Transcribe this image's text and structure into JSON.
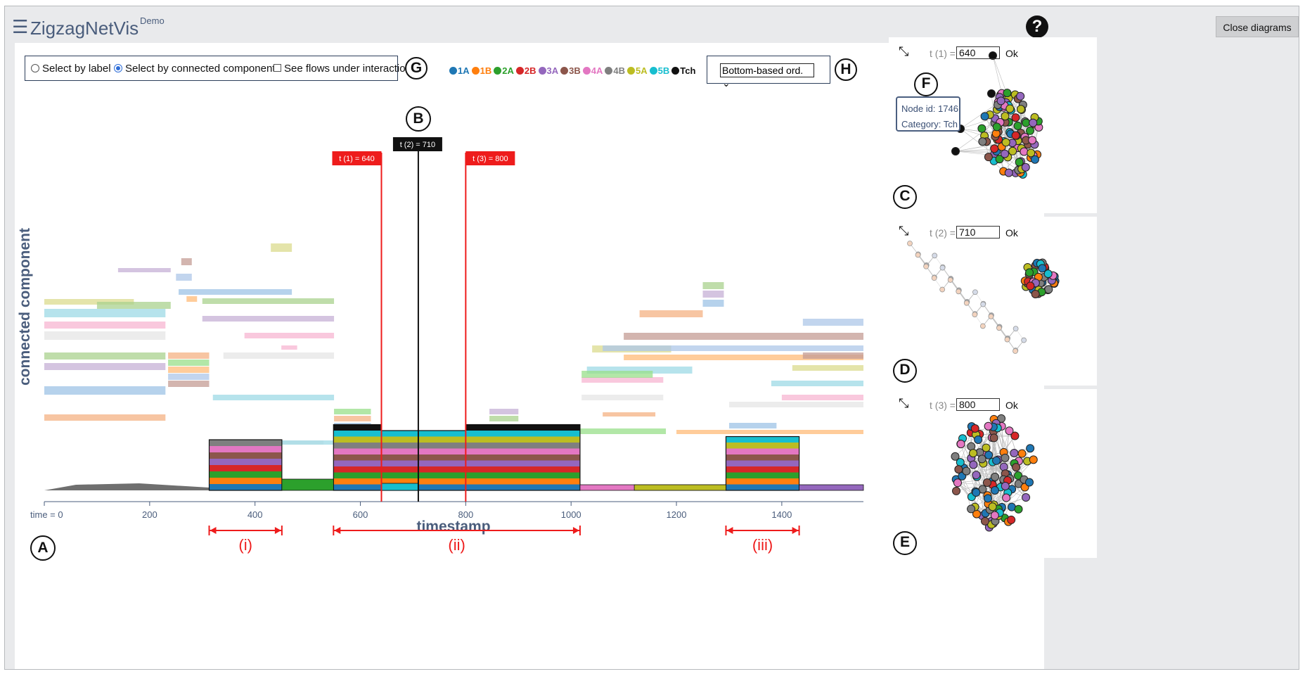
{
  "header": {
    "menu_icon": "hamburger-icon",
    "title": "ZigzagNetVis",
    "badge": "Demo",
    "help": "?",
    "close_button": "Close diagrams"
  },
  "controls": {
    "select_by_label": "Select by label",
    "select_by_component": "Select by connected component",
    "see_flows": "See flows under interaction",
    "selected_mode": "Select by connected component",
    "order_value": "Bottom-based ord."
  },
  "legend": [
    {
      "label": "1A",
      "color": "#1f77b4"
    },
    {
      "label": "1B",
      "color": "#ff7f0e"
    },
    {
      "label": "2A",
      "color": "#2ca02c"
    },
    {
      "label": "2B",
      "color": "#d62728"
    },
    {
      "label": "3A",
      "color": "#9467bd"
    },
    {
      "label": "3B",
      "color": "#8c564b"
    },
    {
      "label": "4A",
      "color": "#e377c2"
    },
    {
      "label": "4B",
      "color": "#7f7f7f"
    },
    {
      "label": "5A",
      "color": "#bcbd22"
    },
    {
      "label": "5B",
      "color": "#17becf"
    },
    {
      "label": "Tch",
      "color": "#111111"
    }
  ],
  "letters": {
    "A": "A",
    "B": "B",
    "C": "C",
    "D": "D",
    "E": "E",
    "F": "F",
    "G": "G",
    "H": "H"
  },
  "chart_data": {
    "type": "area",
    "ylabel": "connected component",
    "xlabel": "timestamp",
    "x_ticks": [
      {
        "value": 0,
        "label": "time = 0"
      },
      {
        "value": 200,
        "label": "200"
      },
      {
        "value": 400,
        "label": "400"
      },
      {
        "value": 600,
        "label": "600"
      },
      {
        "value": 800,
        "label": "800"
      },
      {
        "value": 1000,
        "label": "1000"
      },
      {
        "value": 1200,
        "label": "1200"
      },
      {
        "value": 1400,
        "label": "1400"
      }
    ],
    "x_range": [
      0,
      1555
    ],
    "markers": [
      {
        "label": "t (1) = 640",
        "value": 640,
        "color": "#ee1c1c"
      },
      {
        "label": "t (2) = 710",
        "value": 710,
        "color": "#111111"
      },
      {
        "label": "t (3) = 800",
        "value": 800,
        "color": "#ee1c1c"
      }
    ],
    "ranges": [
      {
        "label": "(i)",
        "from": 313,
        "to": 451
      },
      {
        "label": "(ii)",
        "from": 549,
        "to": 1017
      },
      {
        "label": "(iii)",
        "from": 1294,
        "to": 1433
      }
    ],
    "active_intervals": [
      {
        "from": 313,
        "to": 451,
        "categories": [
          "1A",
          "1B",
          "2A",
          "2B",
          "3A",
          "3B",
          "4A",
          "4B"
        ]
      },
      {
        "from": 549,
        "to": 640,
        "categories": [
          "1A",
          "1B",
          "2A",
          "2B",
          "3A",
          "3B",
          "4A",
          "4B",
          "5A",
          "5B",
          "Tch"
        ]
      },
      {
        "from": 640,
        "to": 800,
        "categories": [
          "1A",
          "1B",
          "2A",
          "2B",
          "3A",
          "3B",
          "4A",
          "4B",
          "5A",
          "5B"
        ]
      },
      {
        "from": 800,
        "to": 1017,
        "categories": [
          "1A",
          "1B",
          "2A",
          "2B",
          "3A",
          "3B",
          "4A",
          "4B",
          "5A",
          "5B",
          "Tch"
        ]
      },
      {
        "from": 1294,
        "to": 1433,
        "categories": [
          "1A",
          "1B",
          "2A",
          "2B",
          "3A",
          "3B",
          "4A",
          "5A",
          "5B"
        ]
      }
    ]
  },
  "panels": [
    {
      "label": "t (1) = ",
      "value": "640",
      "ok": "Ok",
      "letter": "C",
      "tooltip": {
        "node": "Node id: 1746",
        "category": "Category: Tch"
      }
    },
    {
      "label": "t (2) = ",
      "value": "710",
      "ok": "Ok",
      "letter": "D"
    },
    {
      "label": "t (3) = ",
      "value": "800",
      "ok": "Ok",
      "letter": "E"
    }
  ]
}
